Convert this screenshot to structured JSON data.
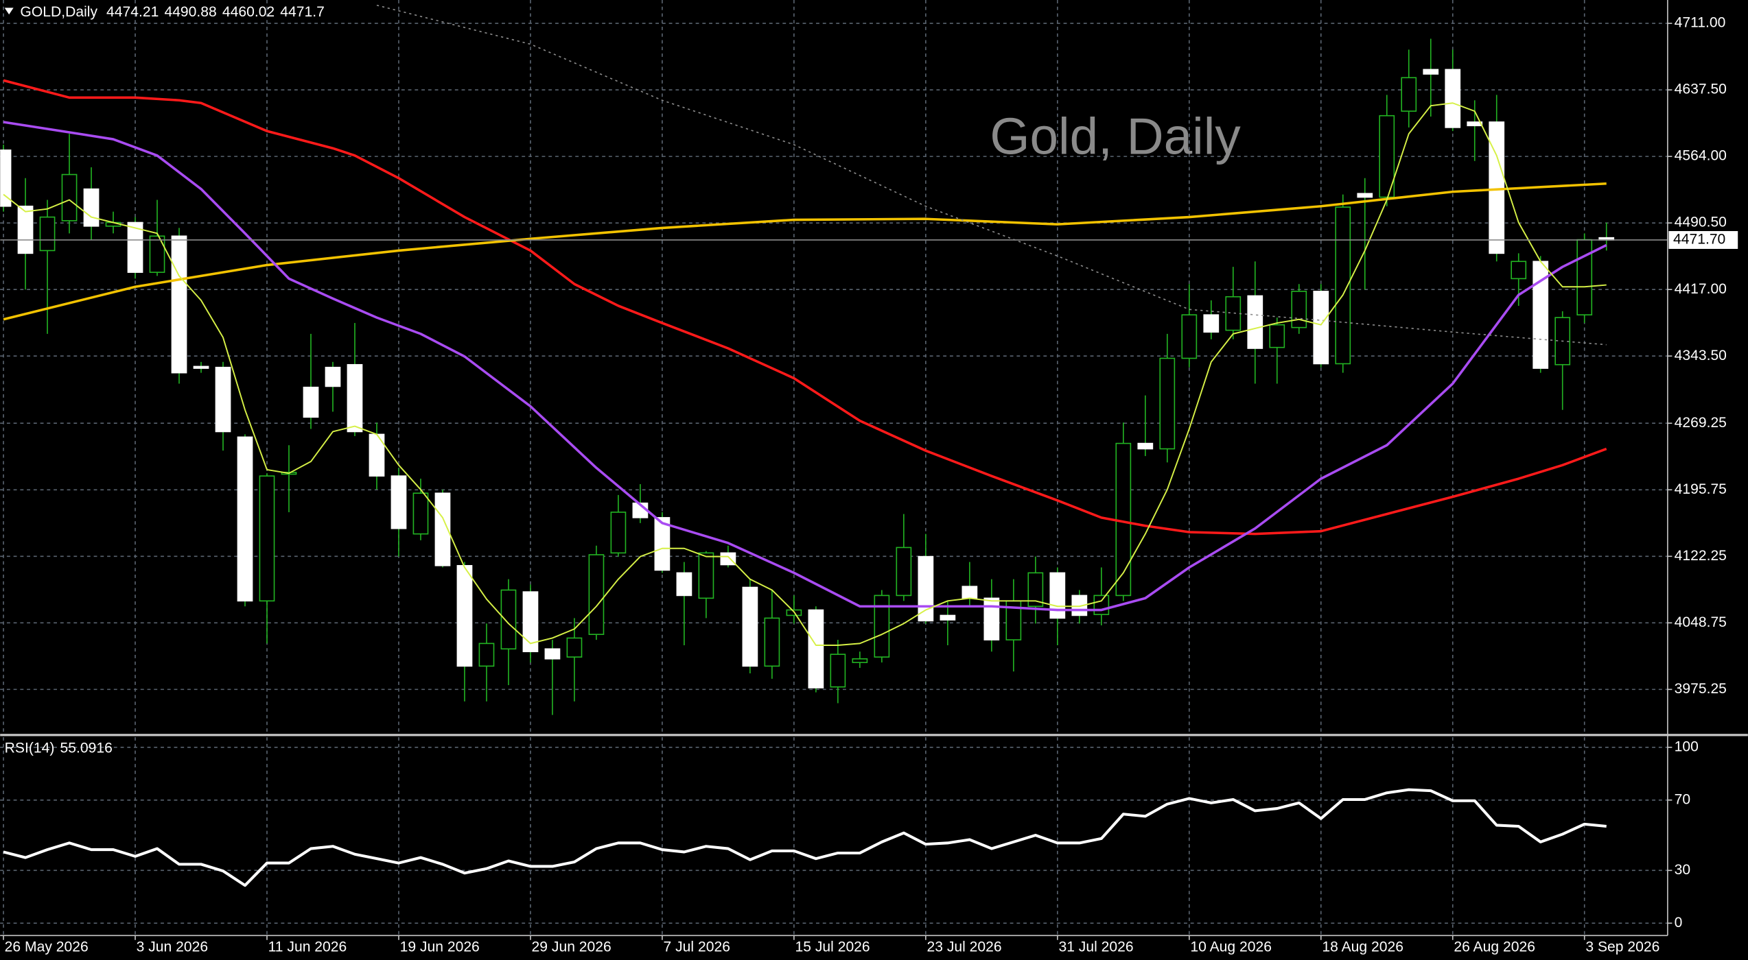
{
  "chart_data": {
    "type": "candlestick",
    "header": "GOLD,Daily",
    "watermark": "Gold, Daily",
    "categories": [
      "26 May 2026",
      null,
      null,
      null,
      null,
      null,
      "3 Jun 2026",
      null,
      null,
      null,
      null,
      null,
      "11 Jun 2026",
      null,
      null,
      null,
      null,
      null,
      "19 Jun 2026",
      null,
      null,
      null,
      null,
      null,
      "29 Jun 2026",
      null,
      null,
      null,
      null,
      null,
      "7 Jul 2026",
      null,
      null,
      null,
      null,
      null,
      "15 Jul 2026",
      null,
      null,
      null,
      null,
      null,
      "23 Jul 2026",
      null,
      null,
      null,
      null,
      null,
      "31 Jul 2026",
      null,
      null,
      null,
      null,
      null,
      "10 Aug 2026",
      null,
      null,
      null,
      null,
      null,
      "18 Aug 2026",
      null,
      null,
      null,
      null,
      null,
      "26 Aug 2026",
      null,
      null,
      null,
      null,
      null,
      "3 Sep 2026",
      null
    ],
    "open": [
      4571,
      4509,
      4460,
      4493,
      4528,
      4487,
      4491,
      4436,
      4476,
      4332,
      4331,
      4254,
      4073,
      4213,
      4309,
      4331,
      4334,
      4257,
      4211,
      4147,
      4192,
      4112,
      4001,
      4020,
      4083,
      4020,
      4011,
      4036,
      4126,
      4181,
      4165,
      4104,
      4076,
      4126,
      4088,
      4001,
      4057,
      4063,
      3978,
      4005,
      4011,
      4079,
      4122,
      4057,
      4089,
      4076,
      4030,
      4067,
      4104,
      4079,
      4058,
      4079,
      4247,
      4241,
      4341,
      4389,
      4372,
      4410,
      4353,
      4375,
      4415,
      4335,
      4523,
      4519,
      4614,
      4660,
      4660,
      4602,
      4602,
      4429,
      4448,
      4334,
      4389,
      4474.21
    ],
    "high": [
      4577,
      4540,
      4516,
      4589,
      4552,
      4503,
      4497,
      4516,
      4485,
      4337,
      4337,
      4257,
      4214,
      4245,
      4368,
      4337,
      4380,
      4270,
      4220,
      4208,
      4196,
      4116,
      4048,
      4097,
      4091,
      4030,
      4054,
      4134,
      4190,
      4202,
      4171,
      4116,
      4128,
      4134,
      4097,
      4085,
      4079,
      4067,
      4030,
      4017,
      4085,
      4169,
      4147,
      4073,
      4116,
      4097,
      4097,
      4122,
      4110,
      4085,
      4110,
      4270,
      4300,
      4368,
      4423,
      4405,
      4442,
      4448,
      4386,
      4423,
      4423,
      4522,
      4540,
      4632,
      4682,
      4694,
      4682,
      4626,
      4632,
      4457,
      4454,
      4393,
      4479,
      4490.88
    ],
    "low": [
      4503,
      4417,
      4368,
      4479,
      4472,
      4479,
      4429,
      4432,
      4313,
      4325,
      4239,
      4067,
      4026,
      4171,
      4263,
      4282,
      4255,
      4196,
      4122,
      4140,
      4110,
      3962,
      3962,
      3980,
      4005,
      3947,
      3962,
      4030,
      4122,
      4159,
      4104,
      4024,
      4054,
      4110,
      3993,
      3987,
      4048,
      3972,
      3960,
      3999,
      4005,
      4073,
      4048,
      4024,
      4067,
      4017,
      3995,
      4048,
      4024,
      4048,
      4046,
      4073,
      4233,
      4226,
      4331,
      4362,
      4362,
      4313,
      4313,
      4368,
      4331,
      4325,
      4417,
      4509,
      4596,
      4608,
      4592,
      4559,
      4448,
      4399,
      4325,
      4284,
      4380,
      4460.02
    ],
    "close": [
      4509,
      4457,
      4497,
      4544,
      4487,
      4491,
      4436,
      4476,
      4325,
      4330,
      4260,
      4073,
      4211,
      4215,
      4276,
      4310,
      4260,
      4211,
      4153,
      4192,
      4112,
      4001,
      4026,
      4085,
      4017,
      4009,
      4032,
      4124,
      4171,
      4165,
      4107,
      4079,
      4126,
      4113,
      4001,
      4054,
      4063,
      3977,
      4014,
      4009,
      4079,
      4132,
      4051,
      4052,
      4076,
      4030,
      4073,
      4104,
      4054,
      4057,
      4079,
      4247,
      4241,
      4341,
      4389,
      4370,
      4409,
      4352,
      4378,
      4415,
      4335,
      4508,
      4519,
      4609,
      4651,
      4655,
      4596,
      4598,
      4457,
      4448,
      4330,
      4386,
      4472,
      4471.7
    ],
    "up_color": "#000000",
    "down_color": "#ffffff",
    "wick_color": "#22b322",
    "ylim": [
      3927.3,
      4736.8
    ],
    "yticks": [
      {
        "value": 4711,
        "label": "4711.00"
      },
      {
        "value": 4637.5,
        "label": "4637.50"
      },
      {
        "value": 4564,
        "label": "4564.00"
      },
      {
        "value": 4490.5,
        "label": "4490.50"
      },
      {
        "value": 4417,
        "label": "4417.00"
      },
      {
        "value": 4343.5,
        "label": "4343.50"
      },
      {
        "value": 4269.25,
        "label": "4269.25"
      },
      {
        "value": 4195.75,
        "label": "4195.75"
      },
      {
        "value": 4122.25,
        "label": "4122.25"
      },
      {
        "value": 4048.75,
        "label": "4048.75"
      },
      {
        "value": 3975.25,
        "label": "3975.25"
      }
    ],
    "current_price": {
      "value": 4471.7,
      "label": "4471.70"
    },
    "grid": true,
    "overlays": [
      {
        "color": "#ff1a1a",
        "width": 2.2,
        "x": [
          0,
          3,
          6,
          8,
          9,
          12,
          15,
          16,
          18,
          21,
          24,
          26,
          28,
          30,
          33,
          36,
          39,
          42,
          45,
          48,
          50,
          52,
          54,
          57,
          60,
          63,
          66,
          69,
          71,
          73
        ],
        "values": [
          4648,
          4629,
          4629,
          4626,
          4623,
          4592,
          4573,
          4565,
          4540,
          4497,
          4460,
          4423,
          4399,
          4380,
          4352,
          4319,
          4272,
          4239,
          4211,
          4184,
          4165,
          4156,
          4149,
          4147,
          4150,
          4169,
          4188,
          4208,
          4223,
          4241
        ]
      },
      {
        "color": "#f2c200",
        "width": 2.2,
        "x": [
          0,
          6,
          12,
          18,
          24,
          30,
          36,
          42,
          48,
          54,
          60,
          66,
          73
        ],
        "values": [
          4384,
          4420,
          4444,
          4460,
          4473,
          4485,
          4494,
          4495,
          4489,
          4497,
          4509,
          4525,
          4534
        ]
      },
      {
        "color": "#a94cf2",
        "width": 2.2,
        "x": [
          0,
          5,
          7,
          9,
          11,
          13,
          15,
          17,
          19,
          21,
          24,
          27,
          30,
          33,
          36,
          39,
          42,
          45,
          48,
          50,
          52,
          54,
          57,
          60,
          63,
          66,
          69,
          71,
          73
        ],
        "values": [
          4602,
          4583,
          4565,
          4528,
          4479,
          4429,
          4407,
          4386,
          4368,
          4343,
          4288,
          4220,
          4159,
          4137,
          4104,
          4067,
          4067,
          4067,
          4063,
          4063,
          4076,
          4110,
          4153,
          4208,
          4245,
          4313,
          4411,
          4442,
          4466
        ]
      },
      {
        "color": "#8c8c8c",
        "width": 1,
        "dash": true,
        "x": [
          17,
          24,
          30,
          36,
          42,
          48,
          54,
          60,
          66,
          73
        ],
        "values": [
          4731,
          4688,
          4626,
          4577,
          4509,
          4454,
          4395,
          4383,
          4370,
          4356
        ]
      },
      {
        "color": "#d6f046",
        "width": 1.2,
        "values": [
          4522,
          4503,
          4506,
          4516,
          4497,
          4491,
          4485,
          4479,
          4432,
          4405,
          4364,
          4284,
          4218,
          4214,
          4227,
          4260,
          4266,
          4257,
          4223,
          4196,
          4165,
          4110,
          4075,
          4048,
          4026,
          4032,
          4042,
          4067,
          4097,
          4122,
          4131,
          4131,
          4122,
          4122,
          4097,
          4085,
          4061,
          4024,
          4024,
          4026,
          4036,
          4048,
          4063,
          4073,
          4076,
          4073,
          4073,
          4073,
          4067,
          4067,
          4073,
          4104,
          4147,
          4196,
          4263,
          4337,
          4368,
          4374,
          4380,
          4384,
          4378,
          4411,
          4460,
          4516,
          4589,
          4620,
          4623,
          4614,
          4565,
          4491,
          4448,
          4420,
          4420,
          4422
        ]
      }
    ],
    "rsi": {
      "label": "RSI(14)",
      "color": "#ffffff",
      "ylim": [
        -7,
        105.7
      ],
      "yticks": [
        100,
        70,
        30,
        0
      ],
      "values": [
        40.5,
        37.3,
        41.8,
        45.6,
        41.8,
        41.8,
        38.0,
        42.4,
        33.5,
        33.5,
        29.7,
        21.5,
        34.2,
        34.2,
        42.4,
        43.7,
        39.2,
        36.7,
        34.2,
        37.3,
        33.5,
        28.5,
        31.0,
        35.4,
        32.3,
        32.3,
        34.8,
        42.4,
        45.6,
        45.6,
        41.8,
        40.5,
        43.7,
        42.4,
        36.1,
        41.1,
        41.1,
        36.7,
        39.9,
        39.9,
        46.2,
        51.3,
        44.9,
        45.6,
        47.5,
        42.4,
        46.2,
        50.0,
        45.6,
        45.6,
        48.1,
        62.0,
        60.8,
        67.7,
        70.9,
        68.4,
        70.3,
        63.9,
        65.2,
        68.4,
        59.5,
        70.3,
        70.3,
        74.1,
        75.9,
        75.3,
        69.6,
        69.6,
        55.7,
        55.1,
        46.2,
        50.6,
        56.3,
        55.0916
      ]
    }
  }
}
